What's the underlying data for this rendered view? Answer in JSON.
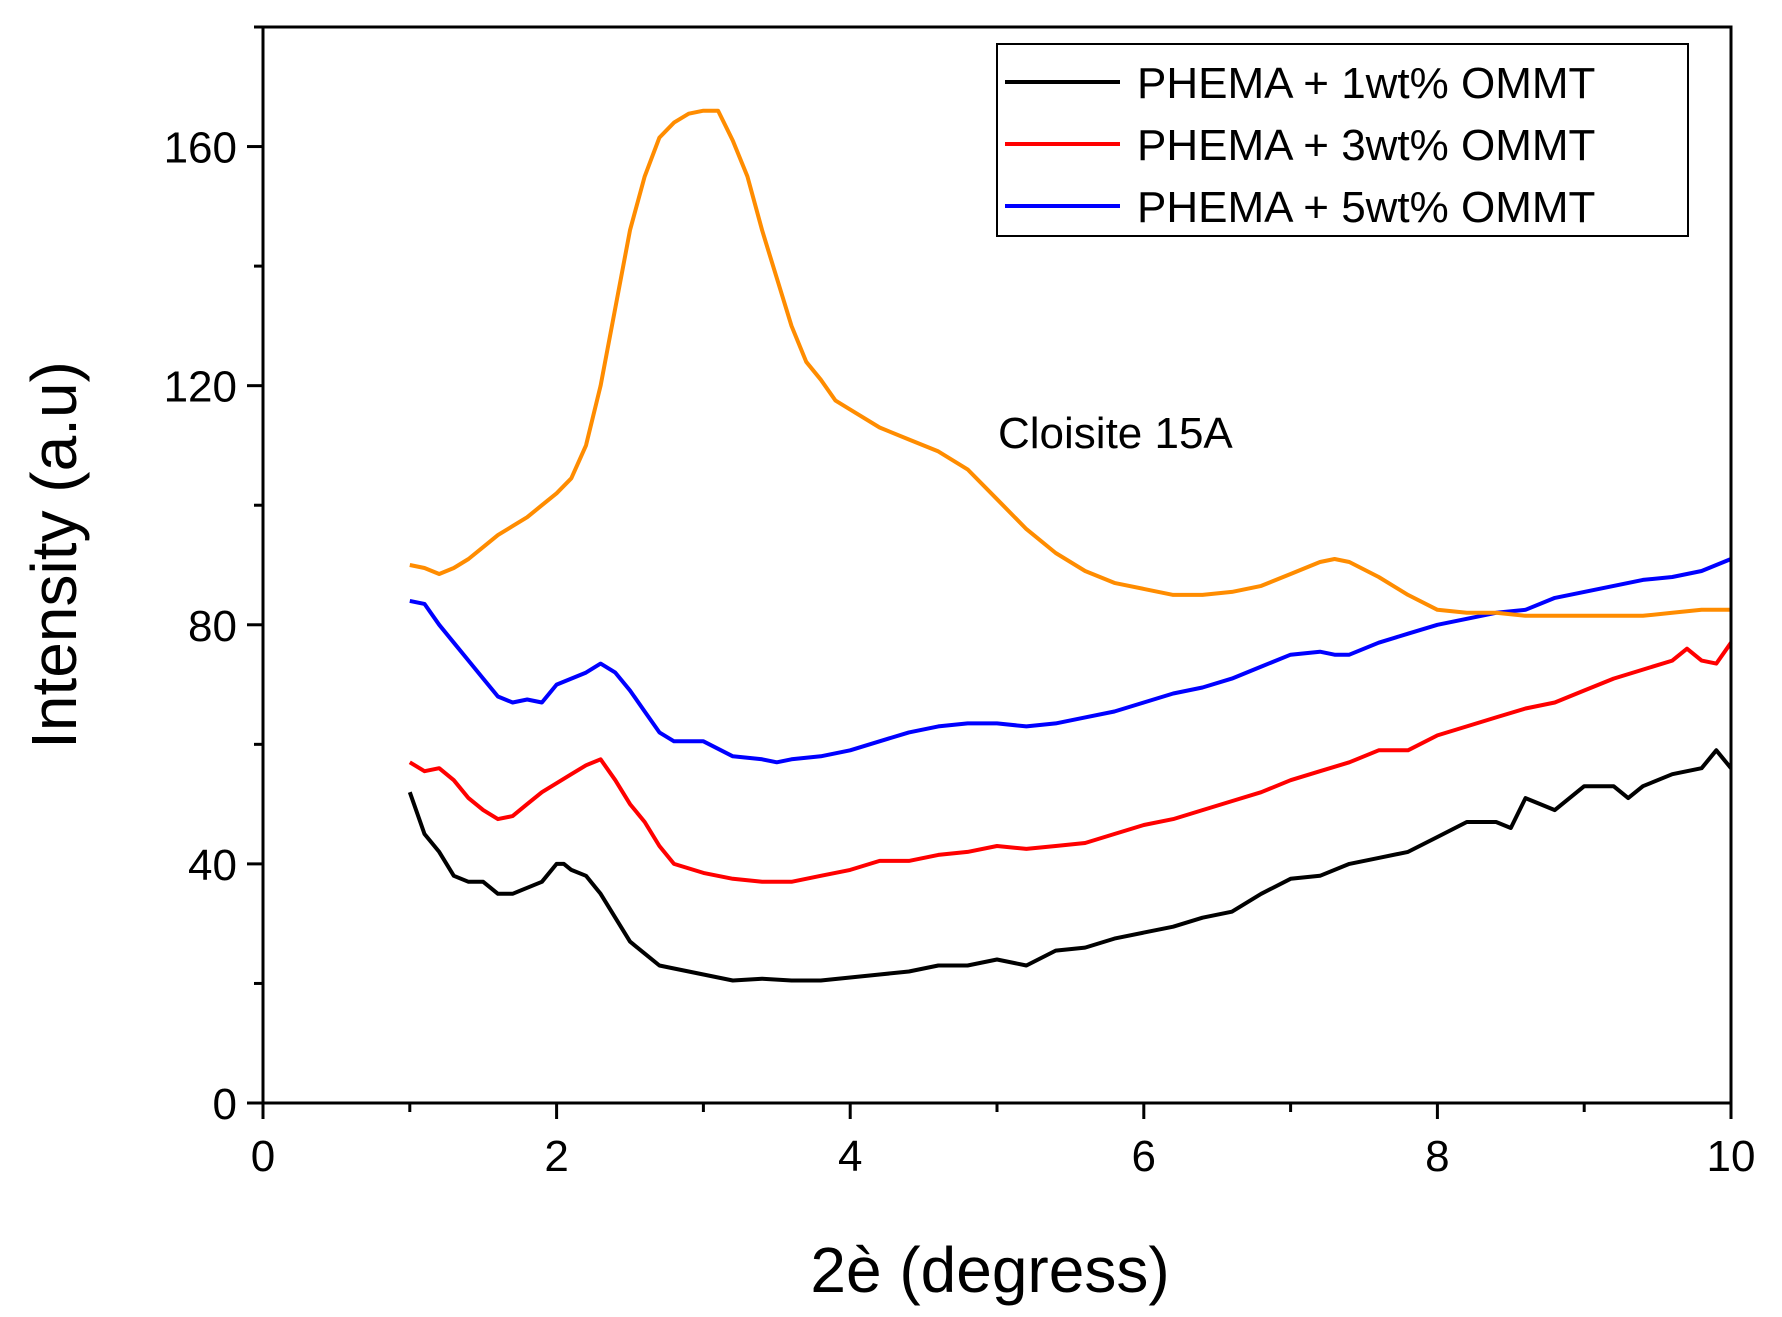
{
  "chart_data": {
    "type": "line",
    "title": "",
    "xlabel": "2è (degress)",
    "ylabel": "Intensity (a.u)",
    "xlim": [
      0,
      10
    ],
    "ylim": [
      0,
      180
    ],
    "xticks": [
      0,
      2,
      4,
      6,
      8,
      10
    ],
    "yticks": [
      0,
      40,
      80,
      120,
      160
    ],
    "grid": false,
    "legend_position": "top-right",
    "annotation": "Cloisite 15A",
    "colors": {
      "axis": "#000000",
      "background": "#ffffff"
    },
    "series": [
      {
        "name": "PHEMA + 1wt% OMMT",
        "color": "#000000",
        "in_legend": true,
        "x": [
          1.0,
          1.1,
          1.2,
          1.3,
          1.4,
          1.5,
          1.6,
          1.7,
          1.8,
          1.9,
          2.0,
          2.05,
          2.1,
          2.2,
          2.3,
          2.4,
          2.5,
          2.6,
          2.7,
          2.8,
          3.0,
          3.2,
          3.4,
          3.6,
          3.8,
          4.0,
          4.2,
          4.4,
          4.6,
          4.8,
          5.0,
          5.2,
          5.4,
          5.6,
          5.8,
          6.0,
          6.2,
          6.4,
          6.6,
          6.8,
          7.0,
          7.2,
          7.4,
          7.6,
          7.8,
          8.0,
          8.2,
          8.4,
          8.5,
          8.6,
          8.7,
          8.8,
          9.0,
          9.2,
          9.3,
          9.4,
          9.6,
          9.8,
          9.9,
          10.0
        ],
        "y": [
          52,
          45,
          42,
          38,
          37,
          37,
          35,
          35,
          36,
          37,
          40,
          40,
          39,
          38,
          35,
          31,
          27,
          25,
          23,
          22.5,
          21.5,
          20.5,
          20.8,
          20.5,
          20.5,
          21,
          21.5,
          22,
          23,
          23,
          24,
          23,
          25.5,
          26,
          27.5,
          28.5,
          29.5,
          31,
          32,
          35,
          37.5,
          38,
          40,
          41,
          42,
          44.5,
          47,
          47,
          46,
          51,
          50,
          49,
          53,
          53,
          51,
          53,
          55,
          56,
          59,
          56
        ]
      },
      {
        "name": "PHEMA + 3wt% OMMT",
        "color": "#ff0000",
        "in_legend": true,
        "x": [
          1.0,
          1.1,
          1.2,
          1.3,
          1.4,
          1.5,
          1.6,
          1.7,
          1.8,
          1.9,
          2.0,
          2.1,
          2.2,
          2.3,
          2.4,
          2.5,
          2.6,
          2.7,
          2.8,
          3.0,
          3.2,
          3.4,
          3.6,
          3.8,
          4.0,
          4.2,
          4.4,
          4.6,
          4.8,
          5.0,
          5.2,
          5.4,
          5.6,
          5.8,
          6.0,
          6.2,
          6.4,
          6.6,
          6.8,
          7.0,
          7.2,
          7.4,
          7.6,
          7.8,
          8.0,
          8.2,
          8.4,
          8.6,
          8.8,
          9.0,
          9.2,
          9.4,
          9.6,
          9.7,
          9.8,
          9.9,
          10.0
        ],
        "y": [
          57,
          55.5,
          56,
          54,
          51,
          49,
          47.5,
          48,
          50,
          52,
          53.5,
          55,
          56.5,
          57.5,
          54,
          50,
          47,
          43,
          40,
          38.5,
          37.5,
          37,
          37,
          38,
          39,
          40.5,
          40.5,
          41.5,
          42,
          43,
          42.5,
          43,
          43.5,
          45,
          46.5,
          47.5,
          49,
          50.5,
          52,
          54,
          55.5,
          57,
          59,
          59,
          61.5,
          63,
          64.5,
          66,
          67,
          69,
          71,
          72.5,
          74,
          76,
          74,
          73.5,
          77
        ]
      },
      {
        "name": "PHEMA + 5wt% OMMT",
        "color": "#0000ff",
        "in_legend": true,
        "x": [
          1.0,
          1.1,
          1.2,
          1.3,
          1.4,
          1.5,
          1.6,
          1.7,
          1.8,
          1.9,
          2.0,
          2.1,
          2.2,
          2.3,
          2.4,
          2.5,
          2.6,
          2.7,
          2.8,
          3.0,
          3.2,
          3.4,
          3.5,
          3.6,
          3.8,
          4.0,
          4.2,
          4.4,
          4.6,
          4.8,
          5.0,
          5.2,
          5.4,
          5.6,
          5.8,
          6.0,
          6.2,
          6.4,
          6.6,
          6.8,
          7.0,
          7.2,
          7.3,
          7.4,
          7.6,
          7.8,
          8.0,
          8.2,
          8.4,
          8.6,
          8.8,
          9.0,
          9.2,
          9.4,
          9.6,
          9.8,
          10.0
        ],
        "y": [
          84,
          83.5,
          80,
          77,
          74,
          71,
          68,
          67,
          67.5,
          67,
          70,
          71,
          72,
          73.5,
          72,
          69,
          65.5,
          62,
          60.5,
          60.5,
          58,
          57.5,
          57,
          57.5,
          58,
          59,
          60.5,
          62,
          63,
          63.5,
          63.5,
          63,
          63.5,
          64.5,
          65.5,
          67,
          68.5,
          69.5,
          71,
          73,
          75,
          75.5,
          75,
          75,
          77,
          78.5,
          80,
          81,
          82,
          82.5,
          84.5,
          85.5,
          86.5,
          87.5,
          88,
          89,
          91
        ]
      },
      {
        "name": "Cloisite 15A",
        "color": "#ff8c00",
        "in_legend": false,
        "x": [
          1.0,
          1.1,
          1.2,
          1.3,
          1.4,
          1.5,
          1.6,
          1.7,
          1.8,
          1.9,
          2.0,
          2.1,
          2.2,
          2.3,
          2.4,
          2.5,
          2.6,
          2.7,
          2.8,
          2.9,
          3.0,
          3.1,
          3.2,
          3.3,
          3.4,
          3.5,
          3.6,
          3.7,
          3.8,
          3.9,
          4.0,
          4.2,
          4.4,
          4.6,
          4.8,
          5.0,
          5.2,
          5.4,
          5.6,
          5.8,
          6.0,
          6.2,
          6.4,
          6.6,
          6.8,
          7.0,
          7.2,
          7.3,
          7.4,
          7.6,
          7.8,
          8.0,
          8.2,
          8.4,
          8.6,
          8.8,
          9.0,
          9.2,
          9.4,
          9.6,
          9.8,
          10.0
        ],
        "y": [
          90,
          89.5,
          88.5,
          89.5,
          91,
          93,
          95,
          96.5,
          98,
          100,
          102,
          104.5,
          110,
          120,
          133,
          146,
          155,
          161.5,
          164,
          165.5,
          166,
          166,
          161,
          155,
          146,
          138,
          130,
          124,
          121,
          117.5,
          116,
          113,
          111,
          109,
          106,
          101,
          96,
          92,
          89,
          87,
          86,
          85,
          85,
          85.5,
          86.5,
          88.5,
          90.5,
          91,
          90.5,
          88,
          85,
          82.5,
          82,
          82,
          81.5,
          81.5,
          81.5,
          81.5,
          81.5,
          82,
          82.5,
          82.5
        ]
      }
    ]
  }
}
